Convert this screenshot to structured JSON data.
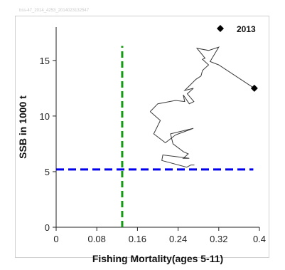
{
  "page": {
    "watermark": "bss-47_2014_4253_2014023132547"
  },
  "chart_data": {
    "type": "line",
    "title": "",
    "xlabel": "Fishing Mortality(ages 5-11)",
    "ylabel": "SSB in 1000 t",
    "xlim": [
      0,
      0.4
    ],
    "ylim": [
      0,
      18
    ],
    "x_ticks": [
      "0",
      "0.08",
      "0.16",
      "0.24",
      "0.32",
      "0.4"
    ],
    "y_ticks": [
      "0",
      "5",
      "10",
      "15"
    ],
    "legend": {
      "label": "2013",
      "marker": "diamond",
      "placement": "top-right"
    },
    "reference_lines": [
      {
        "orientation": "horizontal",
        "value": 5.2,
        "color": "#0000ee",
        "style": "dashed",
        "from_x": 0,
        "to_x": 0.388
      },
      {
        "orientation": "vertical",
        "value": 0.13,
        "color": "#139a13",
        "style": "dashed",
        "from_y": 0,
        "to_y": 16.3
      }
    ],
    "series": [
      {
        "color": "#3a3a3a",
        "terminal_marker": "diamond",
        "points": [
          [
            0.185,
            10.4
          ],
          [
            0.2,
            11.1
          ],
          [
            0.235,
            11.4
          ],
          [
            0.253,
            11.3
          ],
          [
            0.25,
            11.9
          ],
          [
            0.262,
            11.1
          ],
          [
            0.271,
            11.3
          ],
          [
            0.258,
            12
          ],
          [
            0.27,
            12.5
          ],
          [
            0.253,
            12.3
          ],
          [
            0.275,
            13.3
          ],
          [
            0.285,
            13.6
          ],
          [
            0.288,
            14.1
          ],
          [
            0.3,
            14.6
          ],
          [
            0.288,
            15.1
          ],
          [
            0.293,
            15.2
          ],
          [
            0.277,
            16.1
          ],
          [
            0.3,
            15.9
          ],
          [
            0.32,
            16.2
          ],
          [
            0.303,
            14.9
          ],
          [
            0.32,
            14.6
          ],
          [
            0.39,
            12.5
          ]
        ],
        "extra_path": [
          [
            0.185,
            10.4
          ],
          [
            0.205,
            9.6
          ],
          [
            0.192,
            8.4
          ],
          [
            0.215,
            7.6
          ],
          [
            0.235,
            8.3
          ],
          [
            0.27,
            8.9
          ],
          [
            0.225,
            8.4
          ],
          [
            0.23,
            7.5
          ],
          [
            0.25,
            6.8
          ],
          [
            0.26,
            6.6
          ],
          [
            0.25,
            6.2
          ],
          [
            0.262,
            6.2
          ],
          [
            0.21,
            6.5
          ],
          [
            0.208,
            6.0
          ],
          [
            0.257,
            5.4
          ],
          [
            0.265,
            5.6
          ],
          [
            0.272,
            5.6
          ]
        ]
      }
    ]
  }
}
